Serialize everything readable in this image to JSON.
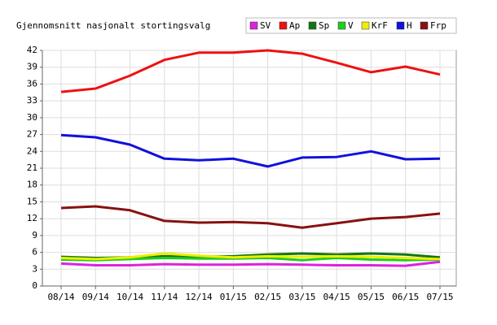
{
  "chart_data": {
    "type": "line",
    "title": "Gjennomsnitt nasjonalt stortingsvalg",
    "categories": [
      "08/14",
      "09/14",
      "10/14",
      "11/14",
      "12/14",
      "01/15",
      "02/15",
      "03/15",
      "04/15",
      "05/15",
      "06/15",
      "07/15"
    ],
    "series": [
      {
        "name": "SV",
        "color": "#dd22dd",
        "values": [
          4.0,
          3.7,
          3.7,
          3.9,
          3.8,
          3.8,
          3.9,
          3.8,
          3.7,
          3.7,
          3.6,
          4.3
        ]
      },
      {
        "name": "Ap",
        "color": "#ee1111",
        "values": [
          34.6,
          35.2,
          37.5,
          40.3,
          41.6,
          41.6,
          42.0,
          41.4,
          39.8,
          38.1,
          39.1,
          37.7
        ]
      },
      {
        "name": "Sp",
        "color": "#117711",
        "values": [
          5.2,
          5.0,
          5.1,
          5.3,
          5.2,
          5.3,
          5.6,
          5.8,
          5.6,
          5.8,
          5.6,
          5.1
        ]
      },
      {
        "name": "V",
        "color": "#22cc22",
        "values": [
          4.7,
          4.6,
          4.8,
          5.0,
          4.9,
          4.9,
          5.0,
          4.6,
          5.0,
          4.7,
          4.6,
          4.7
        ]
      },
      {
        "name": "KrF",
        "color": "#eeee00",
        "values": [
          5.0,
          4.8,
          5.1,
          5.8,
          5.4,
          5.1,
          5.3,
          5.2,
          5.3,
          5.2,
          5.0,
          4.8
        ]
      },
      {
        "name": "H",
        "color": "#1111dd",
        "values": [
          26.9,
          26.5,
          25.2,
          22.7,
          22.4,
          22.7,
          21.3,
          22.9,
          23.0,
          24.0,
          22.6,
          22.7
        ]
      },
      {
        "name": "Frp",
        "color": "#881111",
        "values": [
          13.9,
          14.2,
          13.5,
          11.6,
          11.3,
          11.4,
          11.2,
          10.4,
          11.2,
          12.0,
          12.3,
          12.9
        ]
      }
    ],
    "ylim": [
      0,
      42
    ],
    "yticks": [
      0,
      3,
      6,
      9,
      12,
      15,
      18,
      21,
      24,
      27,
      30,
      33,
      36,
      39,
      42
    ],
    "grid": true,
    "legend_position": "top-right"
  }
}
